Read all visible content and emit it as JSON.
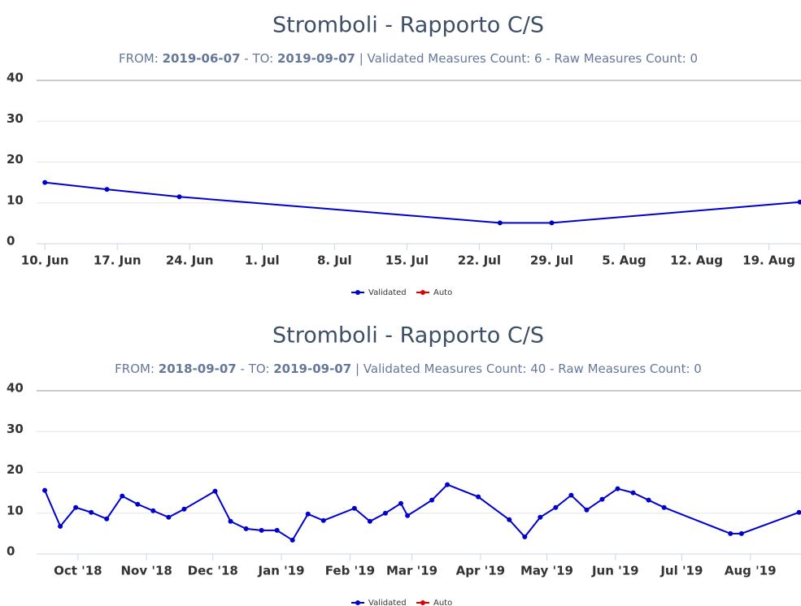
{
  "chart_data": [
    {
      "type": "line",
      "title": "Stromboli - Rapporto C/S",
      "subtitle": [
        "FROM: ",
        "2019-06-07",
        " - TO: ",
        "2019-09-07",
        " | Validated Measures Count: 6 - Raw Measures Count: 0"
      ],
      "xlim": [
        159.2,
        233.1
      ],
      "xticks": [
        {
          "value": 160,
          "label": "10. Jun"
        },
        {
          "value": 167,
          "label": "17. Jun"
        },
        {
          "value": 174,
          "label": "24. Jun"
        },
        {
          "value": 181,
          "label": "1. Jul"
        },
        {
          "value": 188,
          "label": "8. Jul"
        },
        {
          "value": 195,
          "label": "15. Jul"
        },
        {
          "value": 202,
          "label": "22. Jul"
        },
        {
          "value": 209,
          "label": "29. Jul"
        },
        {
          "value": 216,
          "label": "5. Aug"
        },
        {
          "value": 223,
          "label": "12. Aug"
        },
        {
          "value": 230,
          "label": "19. Aug"
        }
      ],
      "ylim": [
        0,
        40
      ],
      "yticks": [
        0,
        10,
        20,
        30,
        40
      ],
      "grid": true,
      "series": [
        {
          "name": "Validated",
          "color": "#0000cc",
          "x": [
            160,
            166,
            173,
            204,
            209,
            233
          ],
          "values": [
            15,
            13.3,
            11.5,
            5.1,
            5.1,
            10.2
          ]
        },
        {
          "name": "Auto",
          "color": "#dd0000",
          "x": [],
          "values": []
        }
      ]
    },
    {
      "type": "line",
      "title": "Stromboli - Rapporto C/S",
      "subtitle": [
        "FROM: ",
        "2018-09-07",
        " - TO: ",
        "2019-09-07",
        " | Validated Measures Count: 40 - Raw Measures Count: 0"
      ],
      "xlim": [
        254.3,
        599.9
      ],
      "xticks": [
        {
          "value": 273,
          "label": "Oct '18"
        },
        {
          "value": 304,
          "label": "Nov '18"
        },
        {
          "value": 334,
          "label": "Dec '18"
        },
        {
          "value": 365,
          "label": "Jan '19"
        },
        {
          "value": 396,
          "label": "Feb '19"
        },
        {
          "value": 424,
          "label": "Mar '19"
        },
        {
          "value": 455,
          "label": "Apr '19"
        },
        {
          "value": 485,
          "label": "May '19"
        },
        {
          "value": 516,
          "label": "Jun '19"
        },
        {
          "value": 546,
          "label": "Jul '19"
        },
        {
          "value": 577,
          "label": "Aug '19"
        }
      ],
      "ylim": [
        0,
        40
      ],
      "yticks": [
        0,
        10,
        20,
        30,
        40
      ],
      "grid": true,
      "series": [
        {
          "name": "Validated",
          "color": "#0000cc",
          "x": [
            258,
            265,
            272,
            279,
            286,
            293,
            300,
            307,
            314,
            321,
            335,
            342,
            349,
            356,
            363,
            370,
            377,
            384,
            398,
            405,
            412,
            419,
            422,
            433,
            440,
            454,
            468,
            475,
            482,
            489,
            496,
            503,
            510,
            517,
            524,
            531,
            538,
            568,
            573,
            599
          ],
          "values": [
            15.6,
            6.8,
            11.4,
            10.2,
            8.6,
            14.2,
            12.2,
            10.6,
            9.0,
            11.0,
            15.4,
            8.0,
            6.2,
            5.8,
            5.8,
            3.4,
            9.8,
            8.2,
            11.2,
            8.0,
            10.0,
            12.4,
            9.4,
            13.2,
            17.0,
            14.0,
            8.4,
            4.2,
            9.0,
            11.4,
            14.4,
            10.8,
            13.4,
            16.0,
            15.0,
            13.2,
            11.4,
            5.0,
            5.0,
            10.2
          ]
        },
        {
          "name": "Auto",
          "color": "#dd0000",
          "x": [],
          "values": []
        }
      ]
    }
  ]
}
